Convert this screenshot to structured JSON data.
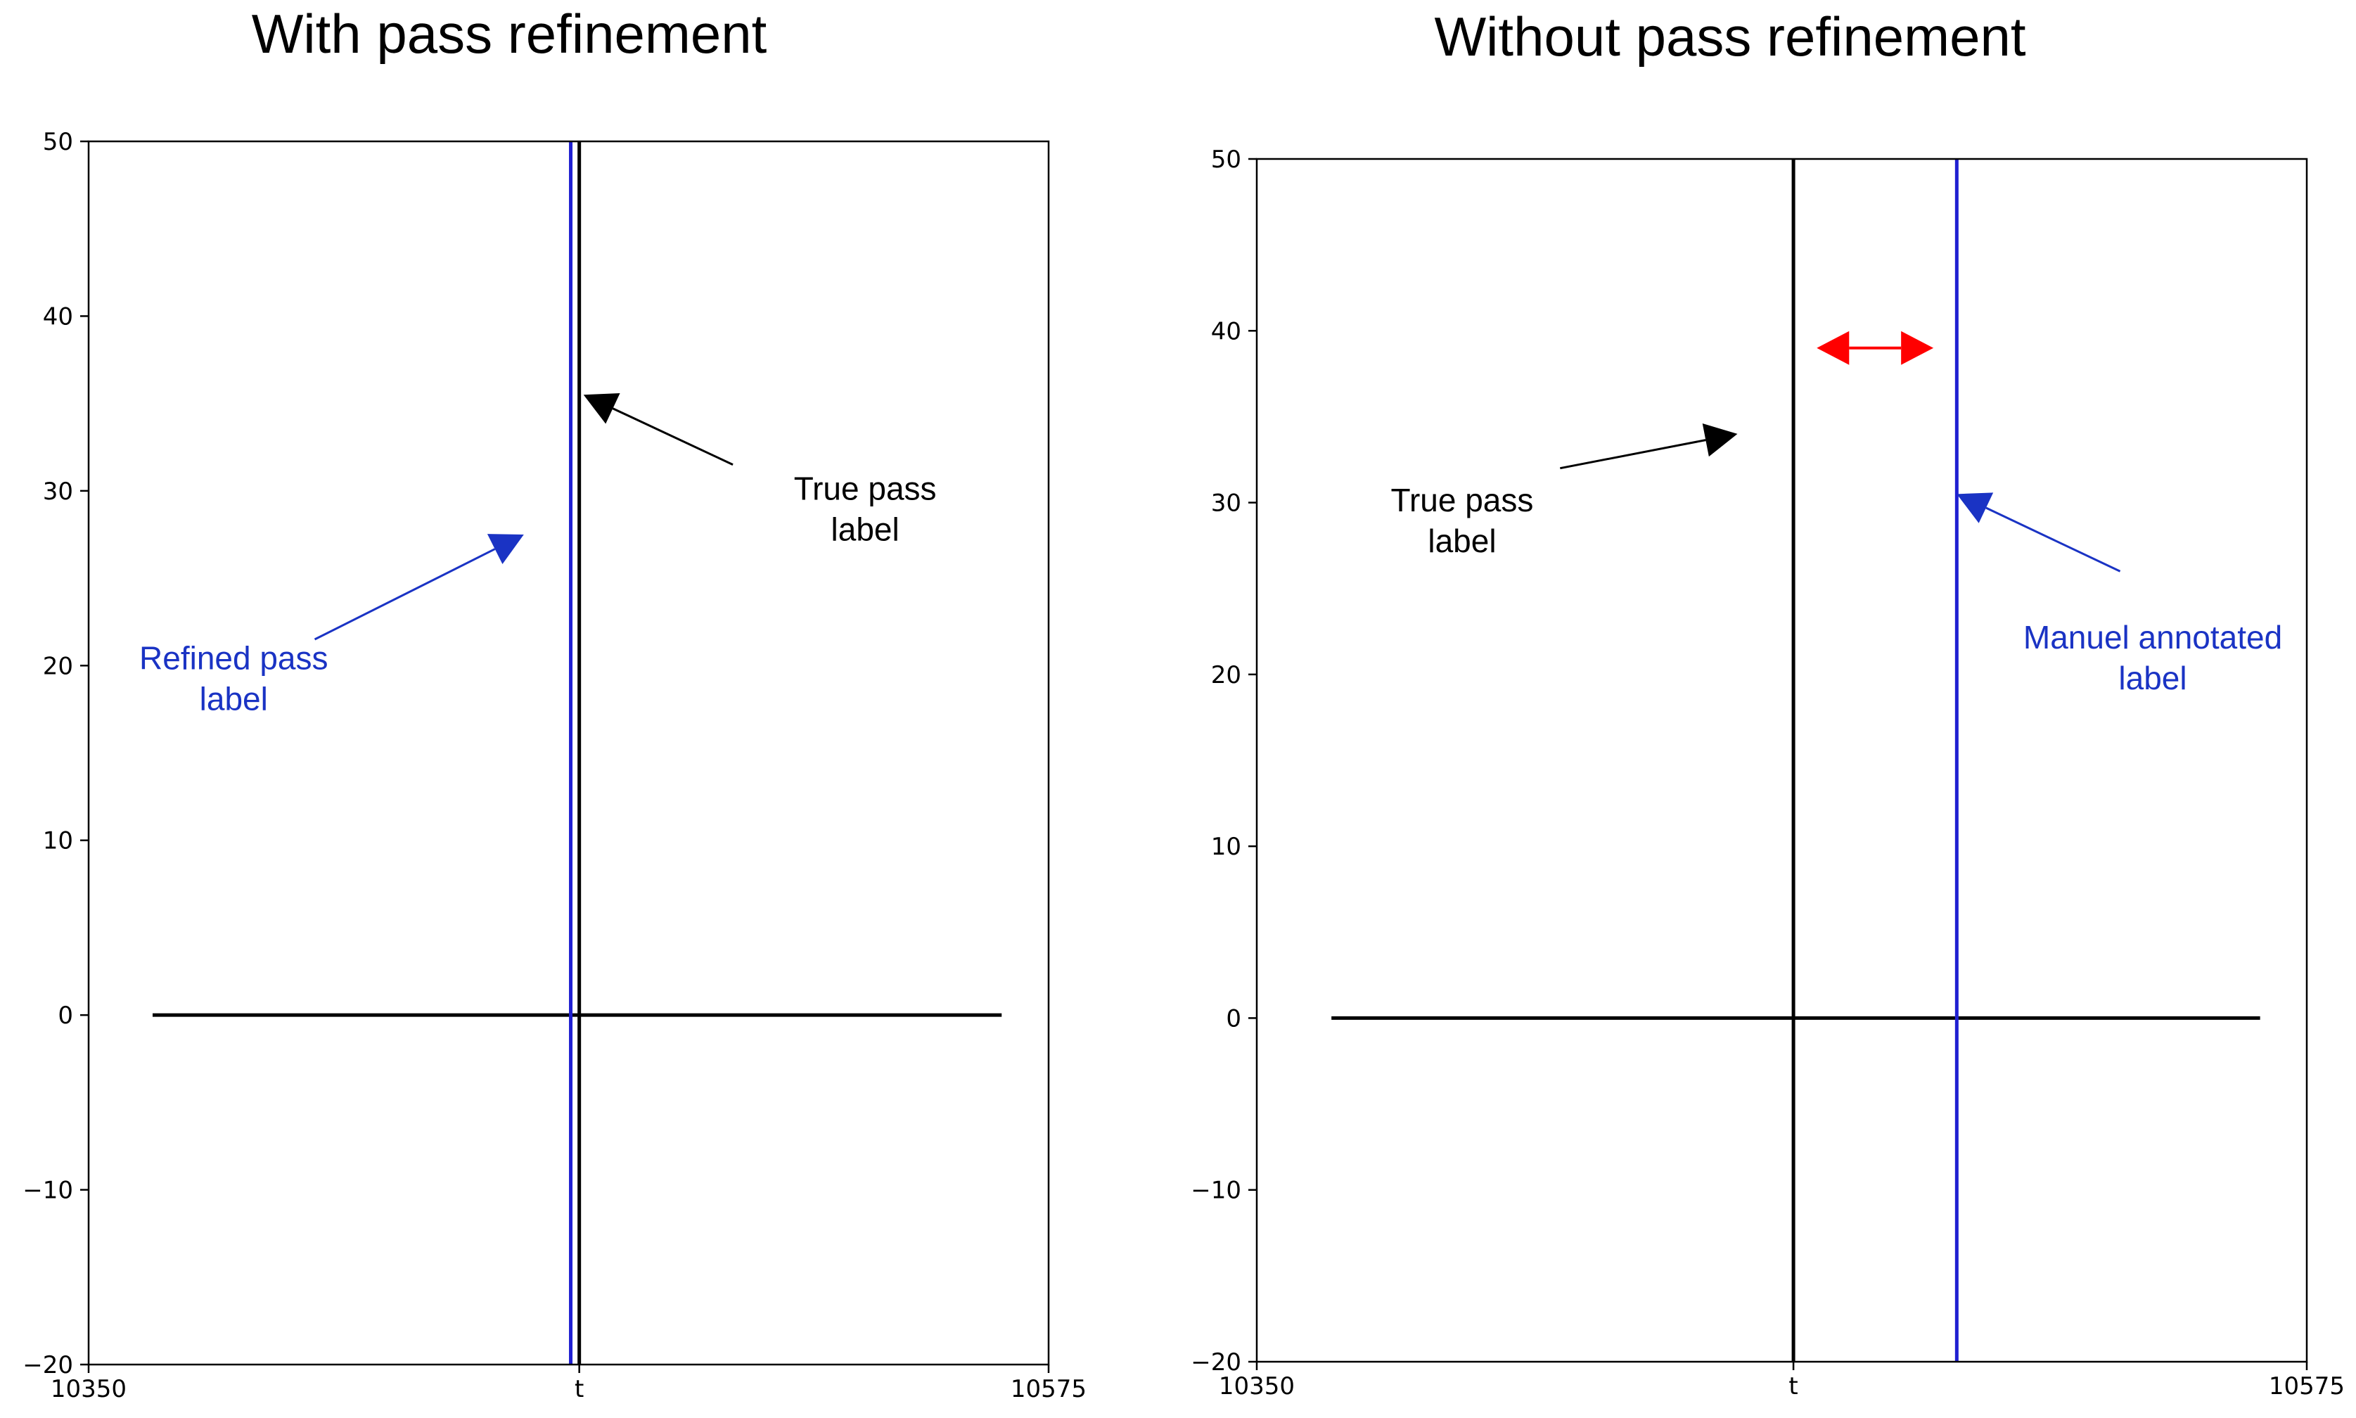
{
  "chart_data": [
    {
      "type": "line",
      "title": "With pass refinement",
      "xlim": [
        10350,
        10575
      ],
      "ylim": [
        -20,
        50
      ],
      "x_tick_labels": [
        "10350",
        "t",
        "10575"
      ],
      "y_ticks": [
        -20,
        -10,
        0,
        10,
        20,
        30,
        40,
        50
      ],
      "y_tick_labels": [
        "−20",
        "−10",
        "0",
        "10",
        "20",
        "30",
        "40",
        "50"
      ],
      "grid": false,
      "series": [
        {
          "kind": "hline",
          "color": "#000000",
          "y": 0,
          "x_start": 10365,
          "x_end": 10564
        },
        {
          "kind": "vline",
          "color": "#1f1fd1",
          "x": 10463
        },
        {
          "kind": "vline",
          "color": "#000000",
          "x": 10465
        }
      ],
      "annotations": [
        {
          "text_lines": [
            "True pass",
            "label"
          ],
          "color": "#000000",
          "text_x": 10532,
          "text_y": 29.5,
          "arrow_from": [
            10501,
            31.5
          ],
          "arrow_to": [
            10466,
            35.5
          ]
        },
        {
          "text_lines": [
            "Refined pass",
            "label"
          ],
          "color": "#1a33c4",
          "text_x": 10384,
          "text_y": 19.8,
          "arrow_from": [
            10403,
            21.5
          ],
          "arrow_to": [
            10452,
            27.5
          ]
        }
      ]
    },
    {
      "type": "line",
      "title": "Without pass refinement",
      "xlim": [
        10350,
        10575
      ],
      "ylim": [
        -20,
        50
      ],
      "x_tick_labels": [
        "10350",
        "t",
        "10575"
      ],
      "y_ticks": [
        -20,
        -10,
        0,
        10,
        20,
        30,
        40,
        50
      ],
      "y_tick_labels": [
        "−20",
        "−10",
        "0",
        "10",
        "20",
        "30",
        "40",
        "50"
      ],
      "grid": false,
      "series": [
        {
          "kind": "hline",
          "color": "#000000",
          "y": 0,
          "x_start": 10366,
          "x_end": 10565
        },
        {
          "kind": "vline",
          "color": "#000000",
          "x": 10465
        },
        {
          "kind": "vline",
          "color": "#1f1fd1",
          "x": 10500
        }
      ],
      "annotations": [
        {
          "text_lines": [
            "True pass",
            "label"
          ],
          "color": "#000000",
          "text_x": 10394,
          "text_y": 29.5,
          "arrow_from": [
            10415,
            32
          ],
          "arrow_to": [
            10453,
            34
          ]
        },
        {
          "text_lines": [
            "Manuel annotated",
            "label"
          ],
          "color": "#1a33c4",
          "text_x": 10542,
          "text_y": 21.5,
          "arrow_from": [
            10535,
            26
          ],
          "arrow_to": [
            10500,
            30.5
          ]
        },
        {
          "text_lines": [],
          "color": "#ff0000",
          "double_arrow": true,
          "arrow_from": [
            10470,
            39
          ],
          "arrow_to": [
            10495,
            39
          ]
        }
      ]
    }
  ]
}
